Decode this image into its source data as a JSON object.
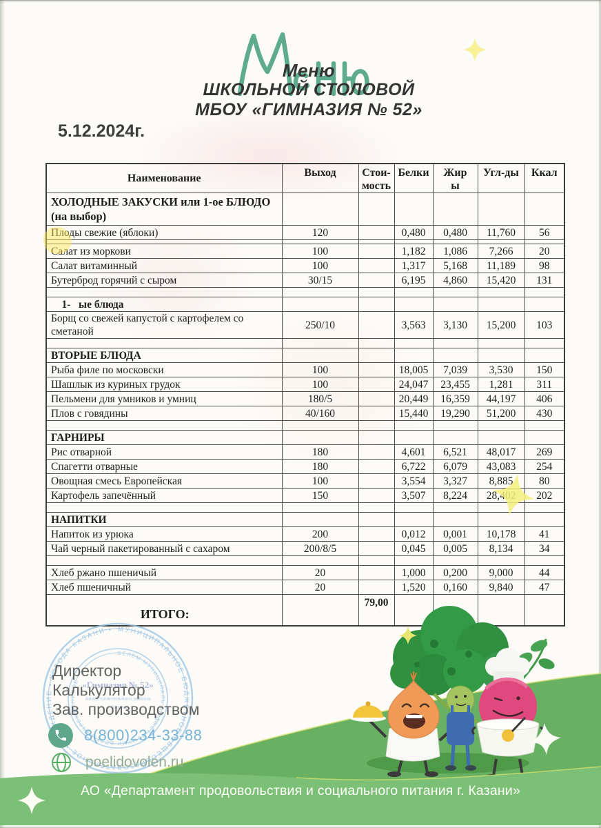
{
  "header": {
    "script_title": "Меню",
    "title_line1": "Меню",
    "title_line2": "ШКОЛЬНОЙ СТОЛОВОЙ",
    "title_line3": "МБОУ «ГИМНАЗИЯ № 52»",
    "date": "5.12.2024г."
  },
  "table": {
    "columns": [
      "Наименование",
      "Выход",
      "Стои-\nмость",
      "Белки",
      "Жир\nы",
      "Угл-ды",
      "Ккал"
    ],
    "rows": [
      {
        "type": "sec2",
        "name": "ХОЛОДНЫЕ ЗАКУСКИ или 1-ое БЛЮДО (на выбор)"
      },
      {
        "type": "item",
        "name": "Плоды свежие  (яблоки)",
        "out": "120",
        "cost": "",
        "p": "0,480",
        "f": "0,480",
        "c": "11,760",
        "k": "56"
      },
      {
        "type": "thin"
      },
      {
        "type": "item",
        "name": "Салат из моркови",
        "out": "100",
        "cost": "",
        "p": "1,182",
        "f": "1,086",
        "c": "7,266",
        "k": "20"
      },
      {
        "type": "item",
        "name": "Салат витаминный",
        "out": "100",
        "cost": "",
        "p": "1,317",
        "f": "5,168",
        "c": "11,189",
        "k": "98"
      },
      {
        "type": "item",
        "name": "Бутерброд горячий с сыром",
        "out": "30/15",
        "cost": "",
        "p": "6,195",
        "f": "4,860",
        "c": "15,420",
        "k": "131"
      },
      {
        "type": "empty"
      },
      {
        "type": "sec",
        "name": "    1-   ые блюда"
      },
      {
        "type": "item",
        "name": "Борщ со свежей капустой с картофелем со сметаной",
        "out": "250/10",
        "cost": "",
        "p": "3,563",
        "f": "3,130",
        "c": "15,200",
        "k": "103"
      },
      {
        "type": "empty"
      },
      {
        "type": "sec",
        "name": "ВТОРЫЕ БЛЮДА"
      },
      {
        "type": "item",
        "name": "Рыба филе по московски",
        "out": "100",
        "cost": "",
        "p": "18,005",
        "f": "7,039",
        "c": "3,530",
        "k": "150"
      },
      {
        "type": "item",
        "name": "Шашлык из куриных грудок",
        "out": "100",
        "cost": "",
        "p": "24,047",
        "f": "23,455",
        "c": "1,281",
        "k": "311"
      },
      {
        "type": "item",
        "name": "Пельмени для умников и умниц",
        "out": "180/5",
        "cost": "",
        "p": "20,449",
        "f": "16,359",
        "c": "44,197",
        "k": "406"
      },
      {
        "type": "item",
        "name": "Плов с говядины",
        "out": "40/160",
        "cost": "",
        "p": "15,440",
        "f": "19,290",
        "c": "51,200",
        "k": "430"
      },
      {
        "type": "empty"
      },
      {
        "type": "sec",
        "name": "ГАРНИРЫ"
      },
      {
        "type": "item",
        "name": "Рис отварной",
        "out": "180",
        "cost": "",
        "p": "4,601",
        "f": "6,521",
        "c": "48,017",
        "k": "269"
      },
      {
        "type": "item",
        "name": "Спагетти отварные",
        "out": "180",
        "cost": "",
        "p": "6,722",
        "f": "6,079",
        "c": "43,083",
        "k": "254"
      },
      {
        "type": "item",
        "name": "Овощная смесь Европейская",
        "out": "100",
        "cost": "",
        "p": "3,554",
        "f": "3,327",
        "c": "8,885",
        "k": "80"
      },
      {
        "type": "item",
        "name": "Картофель запечённый",
        "out": "150",
        "cost": "",
        "p": "3,507",
        "f": "8,224",
        "c": "28,402",
        "k": "202"
      },
      {
        "type": "empty"
      },
      {
        "type": "sec",
        "name": "НАПИТКИ"
      },
      {
        "type": "item",
        "name": "Напиток из урюка",
        "out": "200",
        "cost": "",
        "p": "0,012",
        "f": "0,001",
        "c": "10,178",
        "k": "41"
      },
      {
        "type": "item",
        "name": "Чай черный пакетированный с сахаром",
        "out": "200/8/5",
        "cost": "",
        "p": "0,045",
        "f": "0,005",
        "c": "8,134",
        "k": "34"
      },
      {
        "type": "empty"
      },
      {
        "type": "item",
        "name": "Хлеб ржано пшеничый",
        "out": "20",
        "cost": "",
        "p": "1,000",
        "f": "0,200",
        "c": "9,000",
        "k": "44"
      },
      {
        "type": "item",
        "name": "Хлеб пшеничный",
        "out": "20",
        "cost": "",
        "p": "1,520",
        "f": "0,160",
        "c": "9,840",
        "k": "47"
      },
      {
        "type": "total",
        "name": "ИТОГО:",
        "out": "",
        "cost": "79,00",
        "p": "",
        "f": "",
        "c": "",
        "k": ""
      }
    ]
  },
  "footer": {
    "roles": [
      "Директор",
      "Калькулятор",
      "Зав. производством"
    ],
    "phone": "8(800)234-33-88",
    "phone_icon": "phone-icon",
    "website": "poelidovolen.ru",
    "website_icon": "globe-icon",
    "band_text": "АО «Департамент продовольствия и социального питания г. Казани»"
  },
  "stamp": {
    "ring_outer": "МУНИЦИПАЛЬНОЕ БЮДЖЕТНОЕ ОБЩЕОБРАЗОВАТЕЛЬНОЕ УЧРЕЖДЕНИЕ • ГОРОДА КАЗАНИ •",
    "ring_inner": "БЕЛЕМ МУНИЦИПАЛЬ БЮДЖЕТ ГОМУМИ БЕЛЕМ УЧРЕЖДЕНИЕСЕ",
    "center_line1": "«Гимназия № 52»",
    "center_line2": "Авиастроительного района",
    "center_line3": "г. Казани"
  },
  "colors": {
    "script_green": "#4aa181",
    "band_green": "#7cc077",
    "hill_green": "#68b062",
    "tree_green": "#2f9140",
    "stamp_blue": "#8ab8dc",
    "sparkle_yellow": "#f3ee7d",
    "phone_text_blue": "#77b3d6",
    "site_text_green": "#92ad94",
    "onion_orange": "#f09a58",
    "beet_pink": "#e0487e",
    "overalls_blue": "#3e6cb0"
  }
}
